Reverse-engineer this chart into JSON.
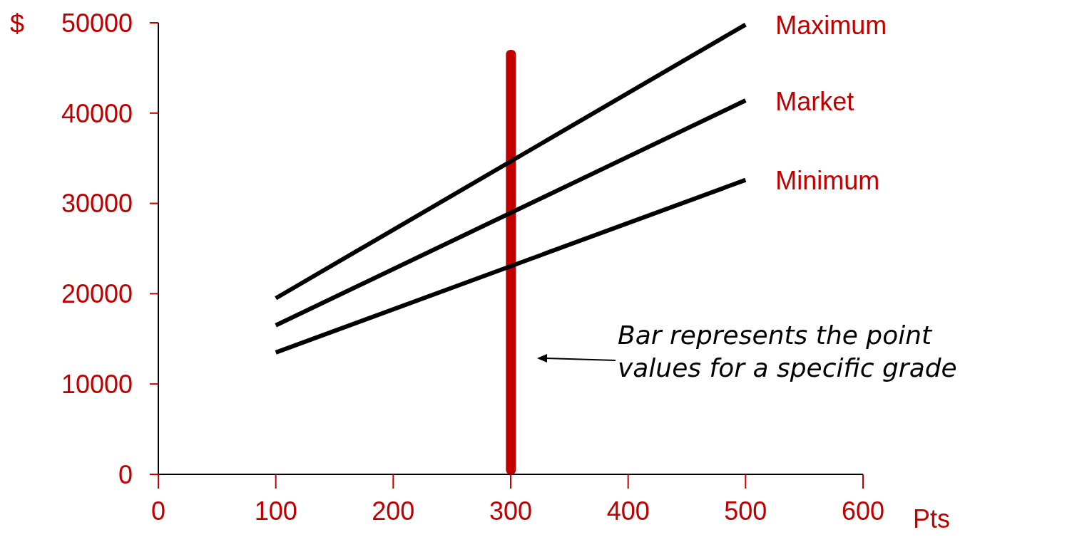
{
  "chart_data": {
    "type": "line",
    "xlabel": "Pts",
    "ylabel": "$",
    "xlim": [
      0,
      600
    ],
    "xticks": [
      0,
      100,
      200,
      300,
      400,
      500,
      600
    ],
    "ylim": [
      0,
      50000
    ],
    "yticks": [
      0,
      10000,
      20000,
      30000,
      40000,
      50000
    ],
    "grid": false,
    "legend": false,
    "marker": "none",
    "line_style": "solid",
    "series": [
      {
        "name": "Maximum",
        "color": "#000000",
        "x": [
          100,
          500
        ],
        "values": [
          19500,
          49800
        ]
      },
      {
        "name": "Market",
        "color": "#000000",
        "x": [
          100,
          500
        ],
        "values": [
          16500,
          41400
        ]
      },
      {
        "name": "Minimum",
        "color": "#000000",
        "x": [
          100,
          500
        ],
        "values": [
          13500,
          32600
        ]
      },
      {
        "type": "bar",
        "color": "#c00000",
        "x": [
          300
        ],
        "values": [
          47000
        ]
      }
    ],
    "annotations": [
      "Bar represents the point values for a specific grade"
    ]
  }
}
